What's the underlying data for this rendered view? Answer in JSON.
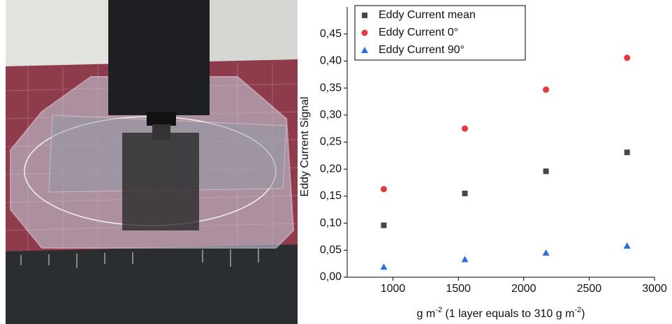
{
  "chart_data": {
    "type": "scatter",
    "xlabel_parts": [
      "g m",
      "-2",
      " (1 layer equals to 310 g m",
      "-2",
      ")"
    ],
    "ylabel": "Eddy Current Signal",
    "series": [
      {
        "name": "Eddy Current mean",
        "color": "#474747",
        "marker": "square",
        "x": [
          930,
          1550,
          2170,
          2790
        ],
        "values": [
          0.096,
          0.155,
          0.196,
          0.231
        ]
      },
      {
        "name": "Eddy Current 0°",
        "color": "#e8383d",
        "marker": "circle",
        "x": [
          930,
          1550,
          2170,
          2790
        ],
        "values": [
          0.163,
          0.275,
          0.347,
          0.406
        ]
      },
      {
        "name": "Eddy Current 90°",
        "color": "#2a6fd6",
        "marker": "triangle",
        "x": [
          930,
          1550,
          2170,
          2790
        ],
        "values": [
          0.019,
          0.033,
          0.045,
          0.058
        ]
      }
    ],
    "xlim": [
      650,
      3000
    ],
    "xticks": [
      1000,
      1500,
      2000,
      2500,
      3000
    ],
    "ylim": [
      0,
      0.5
    ],
    "yticks": [
      {
        "value": 0,
        "label": "0,00"
      },
      {
        "value": 0.05,
        "label": "0,05"
      },
      {
        "value": 0.1,
        "label": "0,10"
      },
      {
        "value": 0.15,
        "label": "0,15"
      },
      {
        "value": 0.2,
        "label": "0,20"
      },
      {
        "value": 0.25,
        "label": "0,25"
      },
      {
        "value": 0.3,
        "label": "0,30"
      },
      {
        "value": 0.35,
        "label": "0,35"
      },
      {
        "value": 0.4,
        "label": "0,40"
      },
      {
        "value": 0.45,
        "label": "0,45"
      }
    ],
    "legend": "top-left"
  }
}
